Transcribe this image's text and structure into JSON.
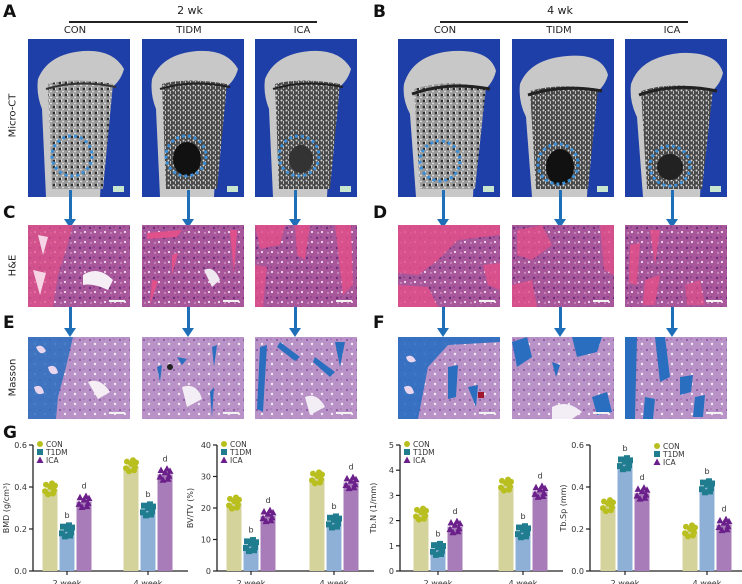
{
  "figure": {
    "panels": {
      "A": {
        "letter": "A",
        "group_title": "2 wk",
        "columns": [
          "CON",
          "TIDM",
          "ICA"
        ]
      },
      "B": {
        "letter": "B",
        "group_title": "4 wk",
        "columns": [
          "CON",
          "TIDM",
          "ICA"
        ]
      },
      "C": {
        "letter": "C"
      },
      "D": {
        "letter": "D"
      },
      "E": {
        "letter": "E"
      },
      "F": {
        "letter": "F"
      },
      "G": {
        "letter": "G"
      }
    },
    "row_labels": {
      "micro_ct": "Micro-CT",
      "he": "H&E",
      "masson": "Masson"
    },
    "colors": {
      "ct_background": "#1f3fa8",
      "arrow": "#1f6fb8",
      "con_bar": "#d4d39b",
      "t1dm_bar": "#8fb0d6",
      "ica_bar": "#a77cb8",
      "con_point": "#b8bf1e",
      "t1dm_point": "#1f7d8f",
      "ica_point": "#6a1f8a",
      "he_stain": "#d9528f",
      "masson_stain": "#2a6ec0"
    }
  },
  "chart_data": [
    {
      "type": "bar",
      "title": "",
      "xlabel": "",
      "ylabel": "BMD (g/cm³)",
      "categories": [
        "2 week",
        "4 week"
      ],
      "ylim": [
        0,
        0.6
      ],
      "yticks": [
        "0.0",
        "0.2",
        "0.4",
        "0.6"
      ],
      "legend": [
        "CON",
        "T1DM",
        "ICA"
      ],
      "legend_position": "top-left",
      "series": [
        {
          "name": "CON",
          "values": [
            0.39,
            0.5
          ]
        },
        {
          "name": "T1DM",
          "values": [
            0.19,
            0.29
          ]
        },
        {
          "name": "ICA",
          "values": [
            0.33,
            0.46
          ]
        }
      ],
      "annotations": [
        {
          "series": "T1DM",
          "category": "2 week",
          "text": "b"
        },
        {
          "series": "ICA",
          "category": "2 week",
          "text": "d"
        },
        {
          "series": "T1DM",
          "category": "4 week",
          "text": "b"
        },
        {
          "series": "ICA",
          "category": "4 week",
          "text": "d"
        }
      ]
    },
    {
      "type": "bar",
      "title": "",
      "xlabel": "",
      "ylabel": "BV/TV (%)",
      "categories": [
        "2 week",
        "4 week"
      ],
      "ylim": [
        0,
        40
      ],
      "yticks": [
        "0",
        "10",
        "20",
        "30",
        "40"
      ],
      "legend": [
        "CON",
        "T1DM",
        "ICA"
      ],
      "legend_position": "top-left",
      "series": [
        {
          "name": "CON",
          "values": [
            21.5,
            29.5
          ]
        },
        {
          "name": "T1DM",
          "values": [
            8.0,
            15.5
          ]
        },
        {
          "name": "ICA",
          "values": [
            17.5,
            28.0
          ]
        }
      ],
      "annotations": [
        {
          "series": "T1DM",
          "category": "2 week",
          "text": "b"
        },
        {
          "series": "ICA",
          "category": "2 week",
          "text": "d"
        },
        {
          "series": "T1DM",
          "category": "4 week",
          "text": "b"
        },
        {
          "series": "ICA",
          "category": "4 week",
          "text": "d"
        }
      ]
    },
    {
      "type": "bar",
      "title": "",
      "xlabel": "",
      "ylabel": "Tb.N (1/mm)",
      "categories": [
        "2 week",
        "4 week"
      ],
      "ylim": [
        0,
        5
      ],
      "yticks": [
        "0",
        "1",
        "2",
        "3",
        "4",
        "5"
      ],
      "legend": [
        "CON",
        "T1DM",
        "ICA"
      ],
      "legend_position": "top-left",
      "series": [
        {
          "name": "CON",
          "values": [
            2.25,
            3.4
          ]
        },
        {
          "name": "T1DM",
          "values": [
            0.85,
            1.55
          ]
        },
        {
          "name": "ICA",
          "values": [
            1.75,
            3.15
          ]
        }
      ],
      "annotations": [
        {
          "series": "T1DM",
          "category": "2 week",
          "text": "b"
        },
        {
          "series": "ICA",
          "category": "2 week",
          "text": "d"
        },
        {
          "series": "T1DM",
          "category": "4 week",
          "text": "b"
        },
        {
          "series": "ICA",
          "category": "4 week",
          "text": "d"
        }
      ]
    },
    {
      "type": "bar",
      "title": "",
      "xlabel": "",
      "ylabel": "Tb.Sp (mm)",
      "categories": [
        "2 week",
        "4 week"
      ],
      "ylim": [
        0,
        0.6
      ],
      "yticks": [
        "0.0",
        "0.2",
        "0.4",
        "0.6"
      ],
      "legend": [
        "CON",
        "T1DM",
        "ICA"
      ],
      "legend_position": "top-center",
      "series": [
        {
          "name": "CON",
          "values": [
            0.31,
            0.19
          ]
        },
        {
          "name": "T1DM",
          "values": [
            0.51,
            0.4
          ]
        },
        {
          "name": "ICA",
          "values": [
            0.37,
            0.22
          ]
        }
      ],
      "annotations": [
        {
          "series": "T1DM",
          "category": "2 week",
          "text": "b"
        },
        {
          "series": "ICA",
          "category": "2 week",
          "text": "d"
        },
        {
          "series": "T1DM",
          "category": "4 week",
          "text": "b"
        },
        {
          "series": "ICA",
          "category": "4 week",
          "text": "d"
        }
      ]
    }
  ]
}
